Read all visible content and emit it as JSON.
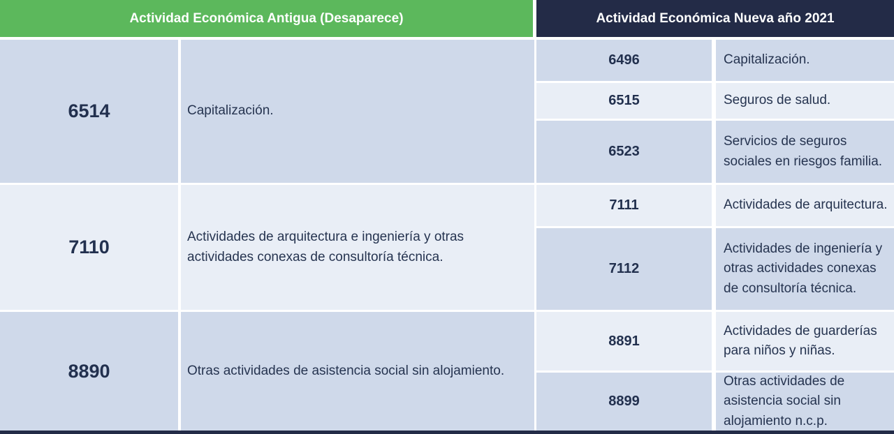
{
  "header": {
    "old_label": "Actividad Económica Antigua (Desaparece)",
    "new_label": "Actividad Económica Nueva año 2021"
  },
  "colors": {
    "old_header_green": "#5CB85C",
    "new_header_navy": "#232B47",
    "row_dark_blue": "#CFD9EA",
    "row_light_blue": "#E9EEF6",
    "code_text": "#22304E",
    "description_text": "#263450"
  },
  "groups": [
    {
      "old": {
        "code": "6514",
        "description": "Capitalización."
      },
      "new": [
        {
          "code": "6496",
          "description": "Capitalización."
        },
        {
          "code": "6515",
          "description": "Seguros de salud."
        },
        {
          "code": "6523",
          "description": "Servicios de seguros sociales en riesgos familia."
        }
      ]
    },
    {
      "old": {
        "code": "7110",
        "description": "Actividades de arquitectura e ingeniería y otras actividades conexas de consultoría técnica."
      },
      "new": [
        {
          "code": "7111",
          "description": "Actividades de arquitectura."
        },
        {
          "code": "7112",
          "description": "Actividades de ingeniería y otras actividades conexas de consultoría técnica."
        }
      ]
    },
    {
      "old": {
        "code": "8890",
        "description": "Otras actividades de asistencia social sin alojamiento."
      },
      "new": [
        {
          "code": "8891",
          "description": "Actividades de guarderías para niños y niñas."
        },
        {
          "code": "8899",
          "description": "Otras actividades de asistencia social sin alojamiento n.c.p."
        }
      ]
    }
  ]
}
